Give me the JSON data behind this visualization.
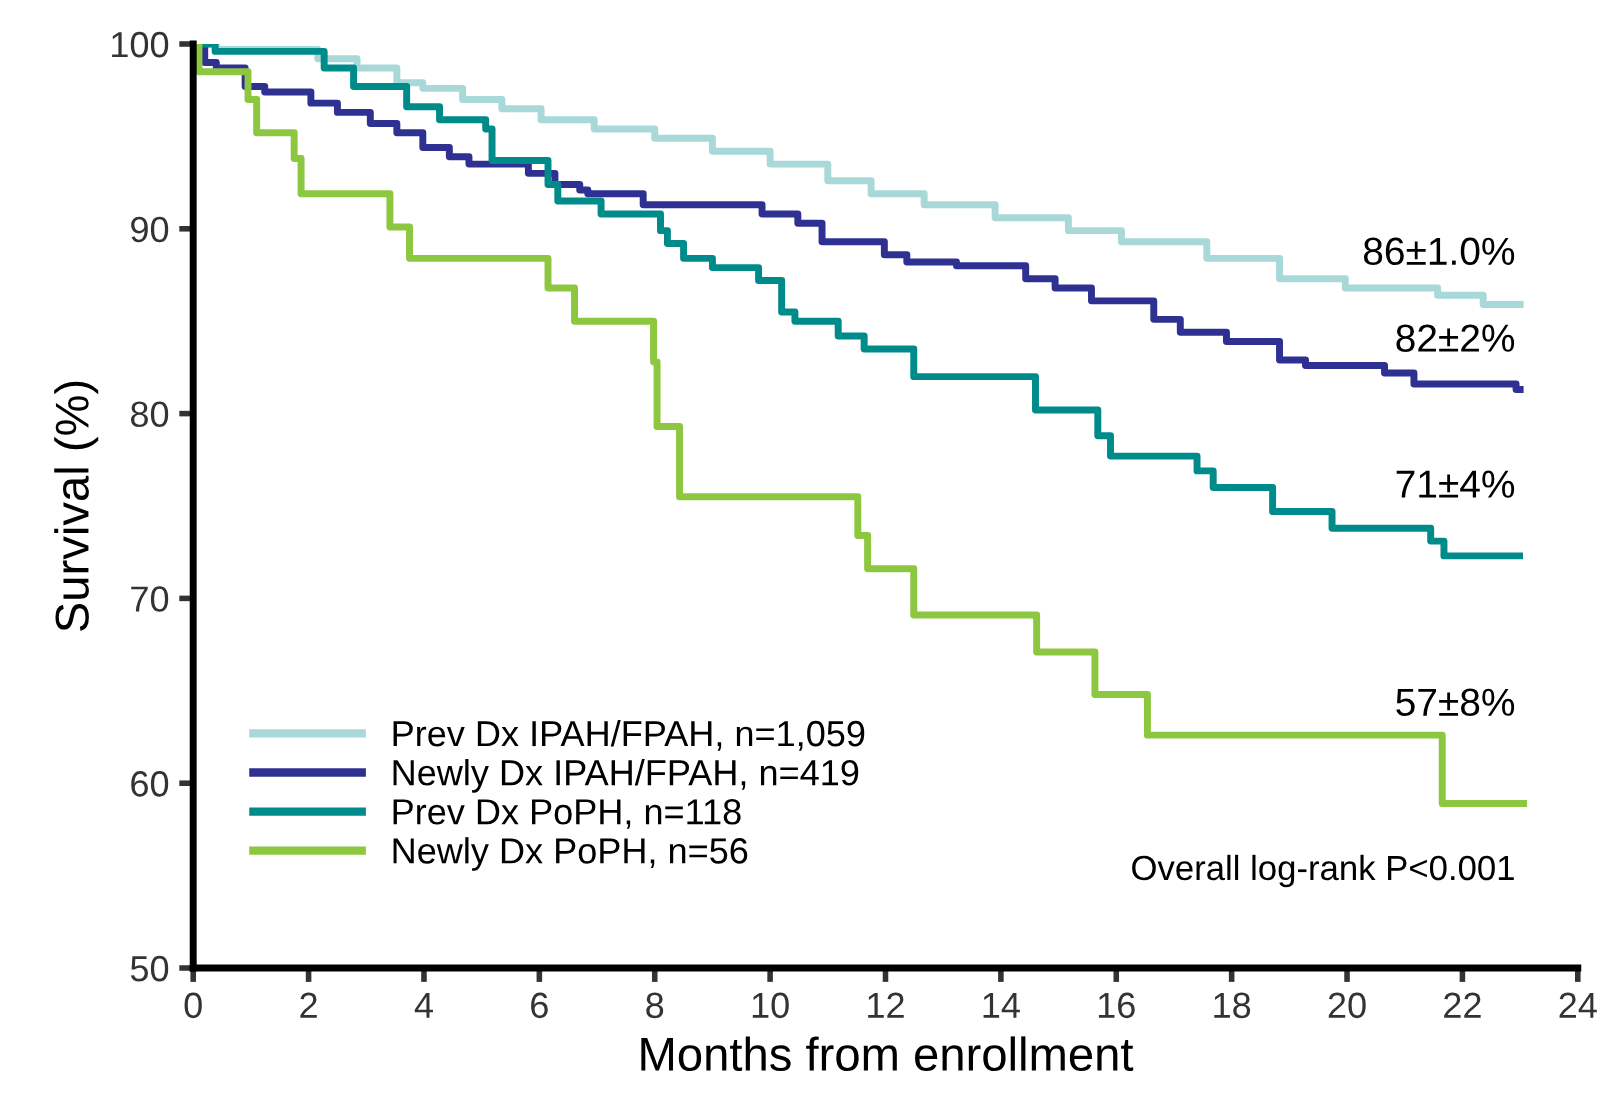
{
  "chart_data": {
    "type": "step",
    "xlabel": "Months from enrollment",
    "ylabel": "Survival (%)",
    "xlim": [
      0,
      24
    ],
    "ylim": [
      50,
      100
    ],
    "xticks": [
      0,
      2,
      4,
      6,
      8,
      10,
      12,
      14,
      16,
      18,
      20,
      22,
      24
    ],
    "yticks": [
      50,
      60,
      70,
      80,
      90,
      100
    ],
    "grid": false,
    "legend": "bottom left",
    "line_style": "solid",
    "marker": "none",
    "series": [
      {
        "name": "Prev Dx IPAH/FPAH, n=1,059",
        "color": "#a8d8d8",
        "x": [
          0,
          0.4,
          2.16,
          2.84,
          3.53,
          3.98,
          4.67,
          5.35,
          6.03,
          6.95,
          8,
          9,
          10,
          11,
          11.75,
          12.67,
          13.9,
          15.17,
          16.09,
          17.57,
          18.83,
          19.97,
          21.57,
          22.36,
          23.0
        ],
        "values": [
          100,
          99.7,
          99.2,
          98.7,
          97.9,
          97.6,
          97.0,
          96.5,
          95.9,
          95.4,
          94.9,
          94.2,
          93.5,
          92.6,
          91.9,
          91.3,
          90.6,
          89.9,
          89.3,
          88.4,
          87.3,
          86.8,
          86.4,
          85.9,
          85.9
        ]
      },
      {
        "name": "Newly Dx IPAH/FPAH, n=419",
        "color": "#2e3192",
        "x": [
          0,
          0.2,
          0.4,
          0.9,
          1.24,
          2.04,
          2.5,
          3.07,
          3.53,
          3.98,
          4.44,
          4.78,
          5.81,
          6.27,
          6.7,
          6.84,
          7.8,
          9.86,
          10.48,
          10.9,
          11.98,
          12.37,
          13.23,
          14.43,
          14.94,
          15.57,
          16.65,
          17.11,
          17.91,
          18.83,
          19.28,
          20.65,
          21.16,
          22.93,
          23.0
        ],
        "values": [
          100,
          99.0,
          98.7,
          97.7,
          97.4,
          96.8,
          96.3,
          95.7,
          95.2,
          94.4,
          93.9,
          93.5,
          93.0,
          92.4,
          92.1,
          91.9,
          91.3,
          90.8,
          90.3,
          89.3,
          88.6,
          88.2,
          88.0,
          87.3,
          86.8,
          86.1,
          85.1,
          84.4,
          83.9,
          82.9,
          82.6,
          82.2,
          81.6,
          81.3,
          81.3
        ]
      },
      {
        "name": "Prev Dx PoPH, n=118",
        "color": "#008b8b",
        "x": [
          0,
          0.38,
          2.27,
          2.78,
          3.7,
          4.27,
          5.07,
          5.18,
          5.92,
          6.15,
          6.32,
          7.07,
          8.1,
          8.22,
          8.5,
          9.0,
          9.8,
          10.2,
          10.43,
          11.18,
          11.63,
          12.49,
          14.6,
          15.68,
          15.9,
          17.4,
          17.68,
          18.71,
          19.74,
          21.45,
          21.68,
          22.99
        ],
        "values": [
          100,
          99.6,
          98.7,
          97.7,
          96.6,
          95.9,
          95.4,
          93.7,
          93.7,
          92.4,
          91.5,
          90.8,
          89.9,
          89.2,
          88.4,
          87.9,
          87.2,
          85.5,
          85.0,
          84.2,
          83.5,
          82.0,
          80.2,
          78.8,
          77.7,
          76.9,
          76.0,
          74.7,
          73.8,
          73.1,
          72.3,
          72.3
        ]
      },
      {
        "name": "Newly Dx PoPH, n=56",
        "color": "#8dc63f",
        "x": [
          0,
          0.1,
          0.95,
          1.1,
          1.75,
          1.87,
          3.41,
          3.75,
          6.15,
          6.61,
          7.98,
          8.04,
          8.43,
          11.52,
          11.69,
          12.49,
          14.62,
          15.63,
          16.54,
          21.65,
          23.06
        ],
        "values": [
          100,
          98.5,
          97.0,
          95.2,
          93.8,
          91.9,
          90.1,
          88.4,
          86.8,
          85.0,
          82.8,
          79.3,
          75.5,
          73.4,
          71.6,
          69.1,
          67.1,
          64.8,
          62.6,
          58.9,
          58.9
        ]
      }
    ],
    "annotations": [
      "86±1.0%",
      "82±2%",
      "71±4%",
      "57±8%",
      "Overall log-rank P<0.001"
    ]
  }
}
